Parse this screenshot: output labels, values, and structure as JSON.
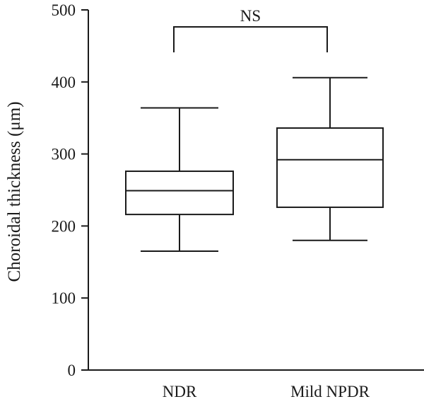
{
  "chart_data": {
    "type": "boxplot",
    "title": "",
    "xlabel": "",
    "ylabel": "Choroidal thickness (μm)",
    "ylim": [
      0,
      500
    ],
    "yticks": [
      0,
      100,
      200,
      300,
      400,
      500
    ],
    "grid": false,
    "legend": "none",
    "categories": [
      "NDR",
      "Mild NPDR"
    ],
    "boxes": [
      {
        "category": "NDR",
        "min": 165,
        "q1": 216,
        "median": 249,
        "q3": 276,
        "max": 364
      },
      {
        "category": "Mild NPDR",
        "min": 180,
        "q1": 226,
        "median": 292,
        "q3": 336,
        "max": 406
      }
    ],
    "annotations": [
      {
        "type": "significance-bracket",
        "between": [
          "NDR",
          "Mild NPDR"
        ],
        "label": "NS"
      }
    ],
    "colors": {
      "ink": "#1a1a1a",
      "box_fill": "#ffffff"
    }
  }
}
